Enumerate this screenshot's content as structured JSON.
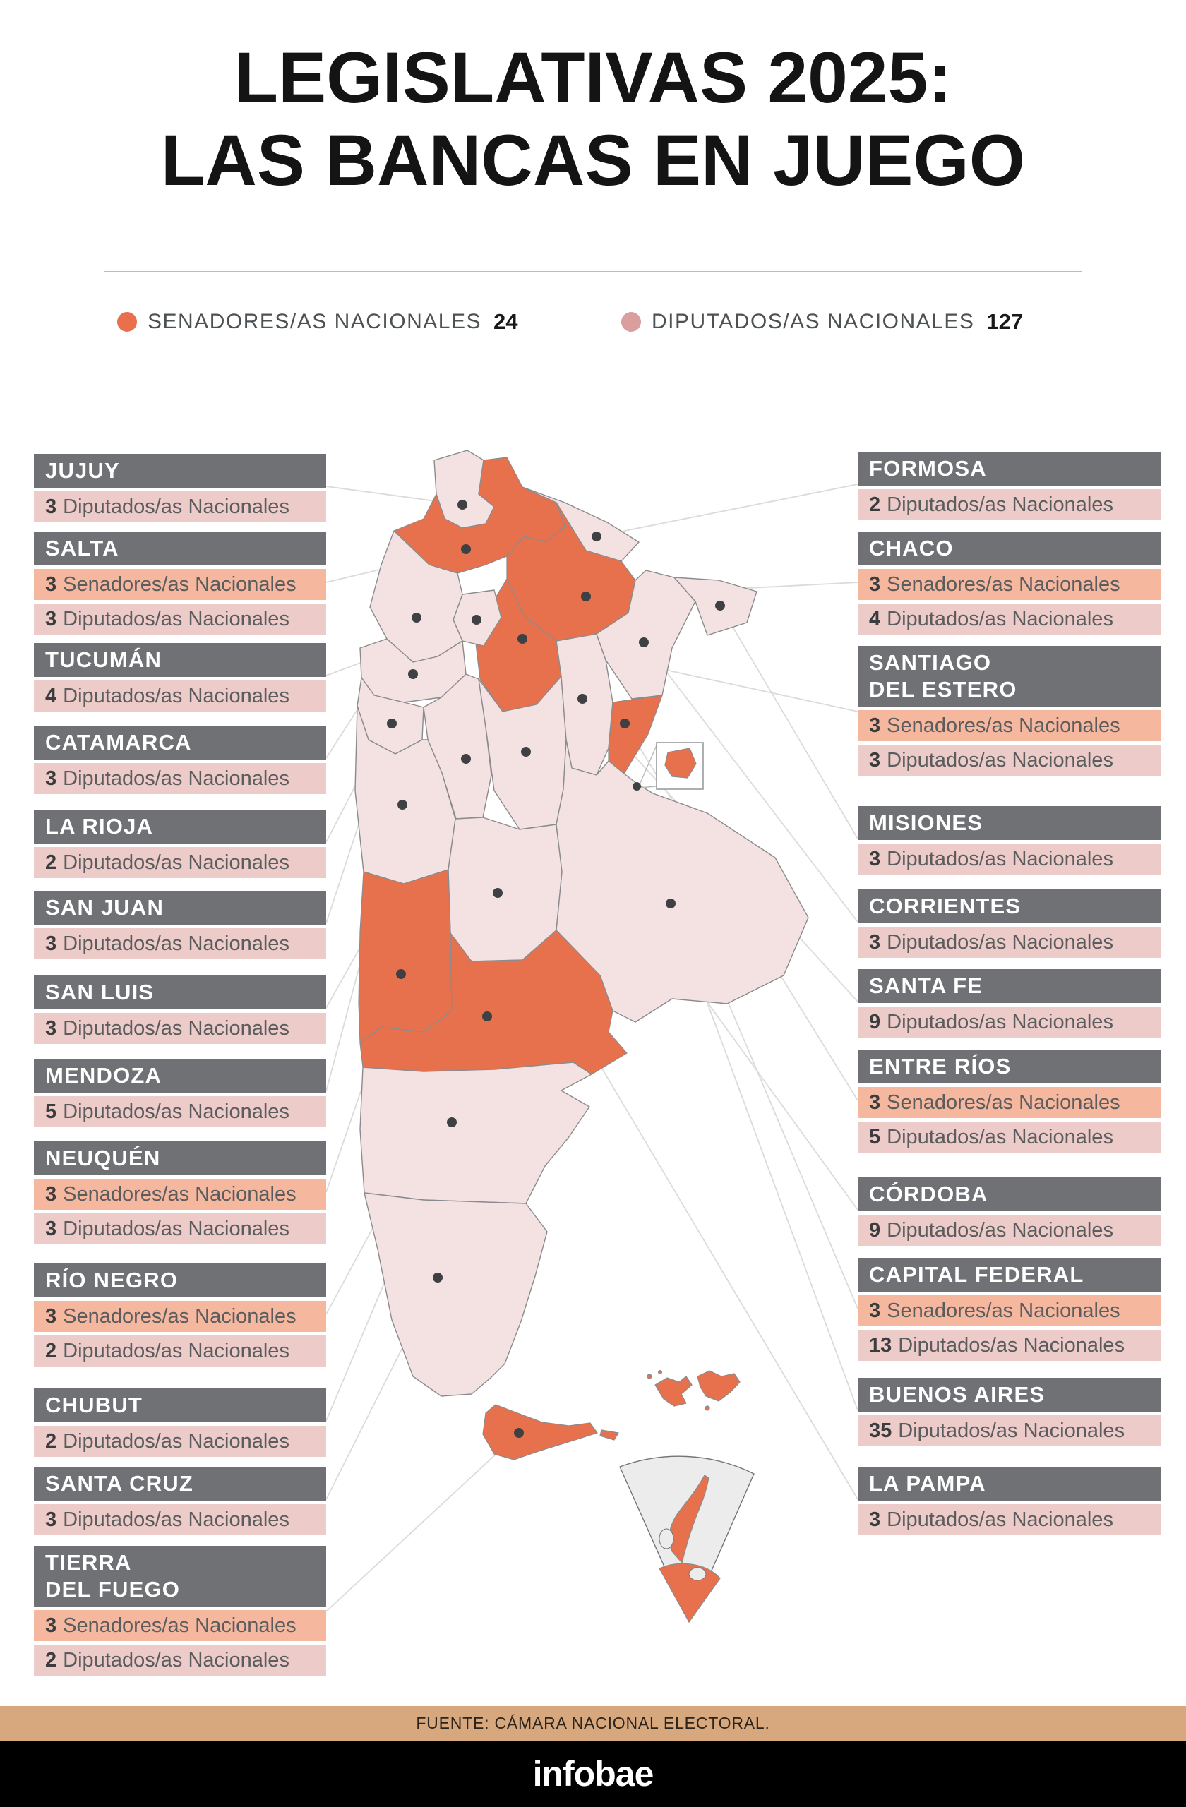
{
  "title": {
    "line1": "LEGISLATIVAS 2025:",
    "line2": "LAS BANCAS EN JUEGO"
  },
  "legend": {
    "senators": {
      "label": "SENADORES/AS NACIONALES",
      "count": "24"
    },
    "deputies": {
      "label": "DIPUTADOS/AS NACIONALES",
      "count": "127"
    }
  },
  "colors": {
    "mapOrange": "#e8714d",
    "mapPink": "#f3e2e1",
    "senDot": "#e8704c",
    "depDot": "#d99f9f",
    "senRow": "#f6b79f",
    "depRow": "#eccbc9",
    "hdrGray": "#707174",
    "footerTan": "#d7a77d"
  },
  "provinces": {
    "left": [
      {
        "id": "jujuy",
        "name_lines": [
          "JUJUY"
        ],
        "seats": [
          {
            "type": "dep",
            "count": "3",
            "label": "Diputados/as Nacionales"
          }
        ]
      },
      {
        "id": "salta",
        "name_lines": [
          "SALTA"
        ],
        "seats": [
          {
            "type": "sen",
            "count": "3",
            "label": "Senadores/as Nacionales"
          },
          {
            "type": "dep",
            "count": "3",
            "label": "Diputados/as Nacionales"
          }
        ]
      },
      {
        "id": "tucuman",
        "name_lines": [
          "TUCUMÁN"
        ],
        "seats": [
          {
            "type": "dep",
            "count": "4",
            "label": "Diputados/as Nacionales"
          }
        ]
      },
      {
        "id": "catamarca",
        "name_lines": [
          "CATAMARCA"
        ],
        "seats": [
          {
            "type": "dep",
            "count": "3",
            "label": "Diputados/as Nacionales"
          }
        ]
      },
      {
        "id": "la_rioja",
        "name_lines": [
          "LA RIOJA"
        ],
        "seats": [
          {
            "type": "dep",
            "count": "2",
            "label": "Diputados/as Nacionales"
          }
        ]
      },
      {
        "id": "san_juan",
        "name_lines": [
          "SAN JUAN"
        ],
        "seats": [
          {
            "type": "dep",
            "count": "3",
            "label": "Diputados/as Nacionales"
          }
        ]
      },
      {
        "id": "san_luis",
        "name_lines": [
          "SAN LUIS"
        ],
        "seats": [
          {
            "type": "dep",
            "count": "3",
            "label": "Diputados/as Nacionales"
          }
        ]
      },
      {
        "id": "mendoza",
        "name_lines": [
          "MENDOZA"
        ],
        "seats": [
          {
            "type": "dep",
            "count": "5",
            "label": "Diputados/as Nacionales"
          }
        ]
      },
      {
        "id": "neuquen",
        "name_lines": [
          "NEUQUÉN"
        ],
        "seats": [
          {
            "type": "sen",
            "count": "3",
            "label": "Senadores/as Nacionales"
          },
          {
            "type": "dep",
            "count": "3",
            "label": "Diputados/as Nacionales"
          }
        ]
      },
      {
        "id": "rio_negro",
        "name_lines": [
          "RÍO NEGRO"
        ],
        "seats": [
          {
            "type": "sen",
            "count": "3",
            "label": "Senadores/as Nacionales"
          },
          {
            "type": "dep",
            "count": "2",
            "label": "Diputados/as Nacionales"
          }
        ]
      },
      {
        "id": "chubut",
        "name_lines": [
          "CHUBUT"
        ],
        "seats": [
          {
            "type": "dep",
            "count": "2",
            "label": "Diputados/as Nacionales"
          }
        ]
      },
      {
        "id": "santa_cruz",
        "name_lines": [
          "SANTA CRUZ"
        ],
        "seats": [
          {
            "type": "dep",
            "count": "3",
            "label": "Diputados/as Nacionales"
          }
        ]
      },
      {
        "id": "tierra_del_fuego",
        "name_lines": [
          "TIERRA",
          "DEL FUEGO"
        ],
        "seats": [
          {
            "type": "sen",
            "count": "3",
            "label": "Senadores/as Nacionales"
          },
          {
            "type": "dep",
            "count": "2",
            "label": "Diputados/as Nacionales"
          }
        ]
      }
    ],
    "right": [
      {
        "id": "formosa",
        "name_lines": [
          "FORMOSA"
        ],
        "seats": [
          {
            "type": "dep",
            "count": "2",
            "label": "Diputados/as Nacionales"
          }
        ]
      },
      {
        "id": "chaco",
        "name_lines": [
          "CHACO"
        ],
        "seats": [
          {
            "type": "sen",
            "count": "3",
            "label": "Senadores/as Nacionales"
          },
          {
            "type": "dep",
            "count": "4",
            "label": "Diputados/as Nacionales"
          }
        ]
      },
      {
        "id": "santiago",
        "name_lines": [
          "SANTIAGO",
          "DEL ESTERO"
        ],
        "seats": [
          {
            "type": "sen",
            "count": "3",
            "label": "Senadores/as Nacionales"
          },
          {
            "type": "dep",
            "count": "3",
            "label": "Diputados/as Nacionales"
          }
        ]
      },
      {
        "id": "misiones",
        "name_lines": [
          "MISIONES"
        ],
        "seats": [
          {
            "type": "dep",
            "count": "3",
            "label": "Diputados/as Nacionales"
          }
        ]
      },
      {
        "id": "corrientes",
        "name_lines": [
          "CORRIENTES"
        ],
        "seats": [
          {
            "type": "dep",
            "count": "3",
            "label": "Diputados/as Nacionales"
          }
        ]
      },
      {
        "id": "santa_fe",
        "name_lines": [
          "SANTA FE"
        ],
        "seats": [
          {
            "type": "dep",
            "count": "9",
            "label": "Diputados/as Nacionales"
          }
        ]
      },
      {
        "id": "entre_rios",
        "name_lines": [
          "ENTRE RÍOS"
        ],
        "seats": [
          {
            "type": "sen",
            "count": "3",
            "label": "Senadores/as Nacionales"
          },
          {
            "type": "dep",
            "count": "5",
            "label": "Diputados/as Nacionales"
          }
        ]
      },
      {
        "id": "cordoba",
        "name_lines": [
          "CÓRDOBA"
        ],
        "seats": [
          {
            "type": "dep",
            "count": "9",
            "label": "Diputados/as Nacionales"
          }
        ]
      },
      {
        "id": "capital_federal",
        "name_lines": [
          "CAPITAL FEDERAL"
        ],
        "seats": [
          {
            "type": "sen",
            "count": "3",
            "label": "Senadores/as Nacionales"
          },
          {
            "type": "dep",
            "count": "13",
            "label": "Diputados/as Nacionales"
          }
        ]
      },
      {
        "id": "buenos_aires",
        "name_lines": [
          "BUENOS AIRES"
        ],
        "seats": [
          {
            "type": "dep",
            "count": "35",
            "label": "Diputados/as Nacionales"
          }
        ]
      },
      {
        "id": "la_pampa",
        "name_lines": [
          "LA PAMPA"
        ],
        "seats": [
          {
            "type": "dep",
            "count": "3",
            "label": "Diputados/as Nacionales"
          }
        ]
      }
    ]
  },
  "footer": {
    "source": "FUENTE: CÁMARA NACIONAL ELECTORAL.",
    "brand": "infobae"
  }
}
